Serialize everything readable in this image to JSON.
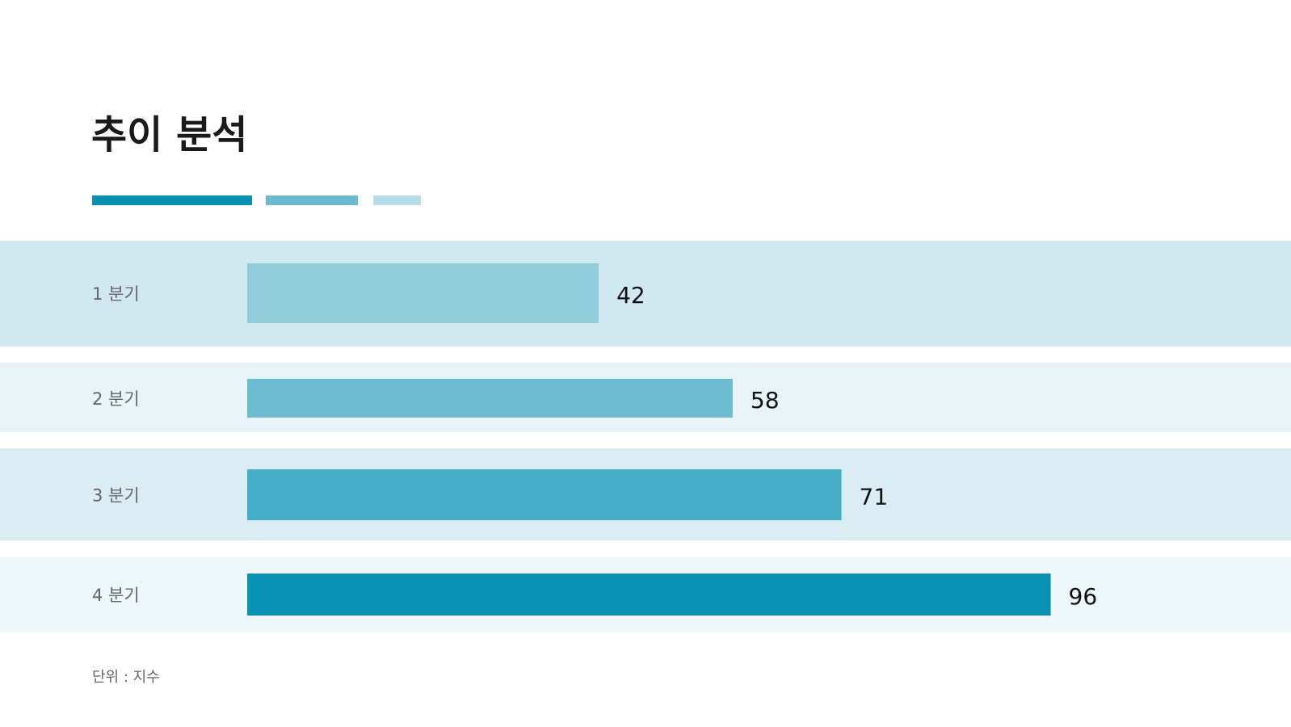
{
  "chart_data": {
    "type": "bar",
    "orientation": "horizontal",
    "title": "추이 분석",
    "categories": [
      "1 분기",
      "2 분기",
      "3 분기",
      "4 분기"
    ],
    "values": [
      42,
      58,
      71,
      96
    ],
    "colors": [
      "#92cddc",
      "#6bbcd1",
      "#45adc7",
      "#0891b2"
    ],
    "note": "단위 : 지수"
  }
}
